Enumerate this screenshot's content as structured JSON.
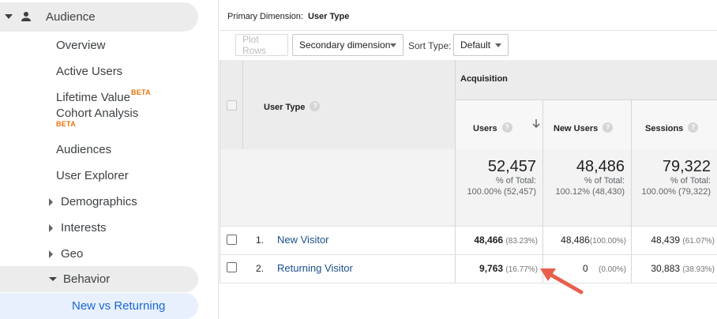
{
  "sidebar": {
    "audience": "Audience",
    "items": [
      "Overview",
      "Active Users",
      "Lifetime Value",
      "Cohort Analysis",
      "Audiences",
      "User Explorer"
    ],
    "beta_label": "BETA",
    "categories": [
      "Demographics",
      "Interests",
      "Geo"
    ],
    "behavior": "Behavior",
    "selected": "New vs Returning"
  },
  "primary_dimension": {
    "label": "Primary Dimension:",
    "value": "User Type"
  },
  "toolbar": {
    "plot_rows": "Plot Rows",
    "secondary_dimension": "Secondary dimension",
    "sort_type_label": "Sort Type:",
    "sort_default": "Default"
  },
  "table": {
    "group_header": "Acquisition",
    "dim_header": "User Type",
    "col_headers": [
      "Users",
      "New Users",
      "Sessions"
    ],
    "totals": [
      {
        "value": "52,457",
        "line1": "% of Total:",
        "line2": "100.00% (52,457)"
      },
      {
        "value": "48,486",
        "line1": "% of Total:",
        "line2": "100.12% (48,430)"
      },
      {
        "value": "79,322",
        "line1": "% of Total:",
        "line2": "100.00% (79,322)"
      }
    ],
    "rows": [
      {
        "num": "1.",
        "name": "New Visitor",
        "users": "48,466",
        "users_pct": "(83.23%)",
        "new_users": "48,486",
        "new_users_pct": "(100.00%)",
        "sessions": "48,439",
        "sessions_pct": "(61.07%)"
      },
      {
        "num": "2.",
        "name": "Returning Visitor",
        "users": "9,763",
        "users_pct": "(16.77%)",
        "new_users": "0",
        "new_users_pct": "(0.00%)",
        "sessions": "30,883",
        "sessions_pct": "(38.93%)"
      }
    ]
  },
  "colors": {
    "accent_link": "#1a4f8b",
    "selected_nav": "#1967d2",
    "beta": "#e8710a",
    "annotation_arrow": "#e8604c"
  }
}
